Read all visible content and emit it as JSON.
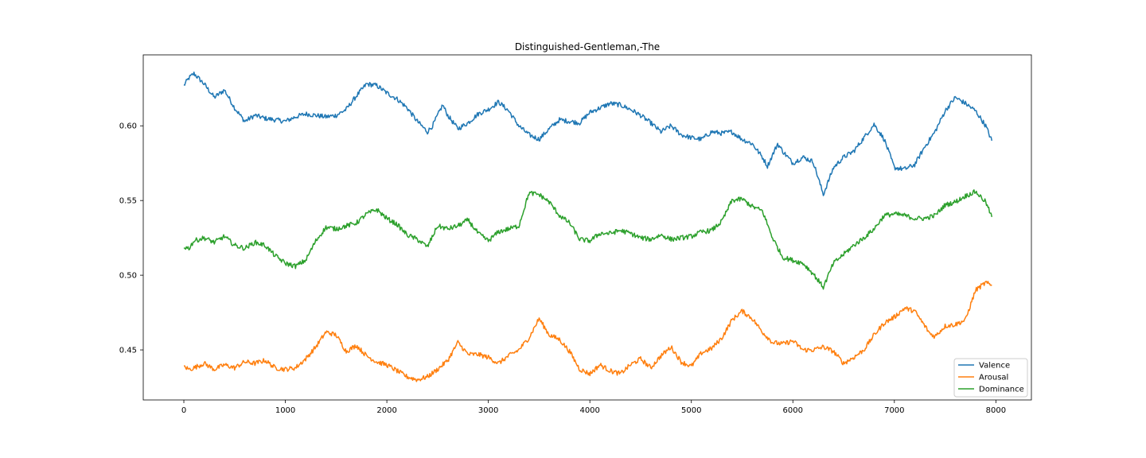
{
  "chart_data": {
    "type": "line",
    "title": "Distinguished-Gentleman,-The",
    "xlabel": "",
    "ylabel": "",
    "xlim": [
      -400,
      8350
    ],
    "ylim": [
      0.4165,
      0.6475
    ],
    "x_ticks": [
      0,
      1000,
      2000,
      3000,
      4000,
      5000,
      6000,
      7000,
      8000
    ],
    "y_ticks": [
      0.45,
      0.5,
      0.55,
      0.6
    ],
    "y_tick_labels": [
      "0.45",
      "0.50",
      "0.55",
      "0.60"
    ],
    "grid": false,
    "legend_position": "lower-right",
    "series": [
      {
        "name": "Valence",
        "color": "#1f77b4",
        "x": [
          0,
          50,
          100,
          200,
          300,
          400,
          450,
          500,
          600,
          700,
          800,
          900,
          1000,
          1100,
          1200,
          1300,
          1400,
          1500,
          1600,
          1700,
          1800,
          1900,
          2000,
          2100,
          2200,
          2300,
          2400,
          2450,
          2550,
          2600,
          2700,
          2800,
          2900,
          3000,
          3100,
          3200,
          3300,
          3400,
          3500,
          3600,
          3700,
          3800,
          3900,
          4000,
          4100,
          4200,
          4300,
          4400,
          4500,
          4600,
          4700,
          4800,
          4900,
          5000,
          5100,
          5200,
          5300,
          5400,
          5500,
          5600,
          5700,
          5750,
          5850,
          5900,
          6000,
          6100,
          6200,
          6300,
          6400,
          6500,
          6600,
          6700,
          6800,
          6900,
          7000,
          7100,
          7200,
          7300,
          7400,
          7500,
          7600,
          7700,
          7800,
          7900,
          7960
        ],
        "y": [
          0.627,
          0.632,
          0.635,
          0.628,
          0.619,
          0.624,
          0.618,
          0.612,
          0.603,
          0.607,
          0.605,
          0.604,
          0.603,
          0.606,
          0.608,
          0.607,
          0.606,
          0.607,
          0.611,
          0.62,
          0.628,
          0.627,
          0.622,
          0.618,
          0.612,
          0.603,
          0.596,
          0.6,
          0.614,
          0.607,
          0.598,
          0.602,
          0.608,
          0.611,
          0.616,
          0.61,
          0.6,
          0.594,
          0.591,
          0.598,
          0.604,
          0.603,
          0.602,
          0.609,
          0.612,
          0.615,
          0.614,
          0.611,
          0.607,
          0.602,
          0.596,
          0.6,
          0.594,
          0.592,
          0.591,
          0.596,
          0.595,
          0.596,
          0.591,
          0.588,
          0.579,
          0.573,
          0.588,
          0.583,
          0.575,
          0.579,
          0.576,
          0.554,
          0.572,
          0.579,
          0.583,
          0.592,
          0.601,
          0.591,
          0.572,
          0.571,
          0.574,
          0.586,
          0.596,
          0.61,
          0.619,
          0.615,
          0.61,
          0.6,
          0.59
        ]
      },
      {
        "name": "Arousal",
        "color": "#ff7f0e",
        "x": [
          0,
          50,
          100,
          200,
          300,
          400,
          500,
          600,
          700,
          800,
          900,
          1000,
          1100,
          1200,
          1300,
          1400,
          1500,
          1600,
          1700,
          1800,
          1900,
          2000,
          2100,
          2200,
          2300,
          2400,
          2500,
          2600,
          2700,
          2800,
          2900,
          3000,
          3100,
          3200,
          3300,
          3400,
          3500,
          3600,
          3700,
          3800,
          3900,
          4000,
          4100,
          4200,
          4300,
          4400,
          4500,
          4600,
          4700,
          4800,
          4900,
          5000,
          5100,
          5200,
          5300,
          5400,
          5500,
          5600,
          5700,
          5800,
          5900,
          6000,
          6100,
          6200,
          6300,
          6400,
          6500,
          6600,
          6700,
          6800,
          6900,
          7000,
          7100,
          7200,
          7300,
          7350,
          7400,
          7500,
          7600,
          7700,
          7800,
          7900,
          7960
        ],
        "y": [
          0.439,
          0.437,
          0.438,
          0.441,
          0.437,
          0.44,
          0.438,
          0.442,
          0.441,
          0.443,
          0.438,
          0.437,
          0.438,
          0.444,
          0.452,
          0.462,
          0.46,
          0.449,
          0.453,
          0.446,
          0.442,
          0.44,
          0.436,
          0.432,
          0.43,
          0.432,
          0.437,
          0.443,
          0.455,
          0.447,
          0.447,
          0.445,
          0.441,
          0.446,
          0.45,
          0.458,
          0.471,
          0.46,
          0.457,
          0.449,
          0.437,
          0.434,
          0.44,
          0.436,
          0.434,
          0.44,
          0.444,
          0.438,
          0.446,
          0.452,
          0.442,
          0.439,
          0.448,
          0.451,
          0.458,
          0.47,
          0.476,
          0.471,
          0.462,
          0.455,
          0.454,
          0.456,
          0.45,
          0.45,
          0.452,
          0.449,
          0.441,
          0.445,
          0.45,
          0.46,
          0.468,
          0.472,
          0.478,
          0.476,
          0.466,
          0.461,
          0.459,
          0.466,
          0.467,
          0.47,
          0.49,
          0.495,
          0.493
        ]
      },
      {
        "name": "Dominance",
        "color": "#2ca02c",
        "x": [
          0,
          50,
          100,
          200,
          300,
          400,
          500,
          600,
          700,
          800,
          900,
          1000,
          1100,
          1200,
          1300,
          1400,
          1500,
          1600,
          1700,
          1800,
          1900,
          2000,
          2100,
          2200,
          2300,
          2400,
          2500,
          2600,
          2700,
          2800,
          2900,
          3000,
          3100,
          3200,
          3300,
          3400,
          3500,
          3600,
          3700,
          3800,
          3900,
          4000,
          4100,
          4200,
          4300,
          4400,
          4500,
          4600,
          4700,
          4800,
          4900,
          5000,
          5100,
          5200,
          5300,
          5400,
          5500,
          5600,
          5700,
          5800,
          5900,
          6000,
          6100,
          6200,
          6300,
          6400,
          6500,
          6600,
          6700,
          6800,
          6900,
          7000,
          7100,
          7200,
          7300,
          7400,
          7500,
          7600,
          7700,
          7800,
          7900,
          7960
        ],
        "y": [
          0.519,
          0.518,
          0.523,
          0.525,
          0.522,
          0.526,
          0.52,
          0.518,
          0.522,
          0.52,
          0.513,
          0.508,
          0.506,
          0.51,
          0.523,
          0.532,
          0.531,
          0.533,
          0.535,
          0.541,
          0.544,
          0.538,
          0.534,
          0.527,
          0.524,
          0.519,
          0.533,
          0.531,
          0.533,
          0.537,
          0.528,
          0.523,
          0.529,
          0.531,
          0.533,
          0.555,
          0.554,
          0.549,
          0.54,
          0.535,
          0.524,
          0.523,
          0.528,
          0.528,
          0.53,
          0.528,
          0.525,
          0.524,
          0.527,
          0.524,
          0.525,
          0.526,
          0.529,
          0.53,
          0.536,
          0.55,
          0.551,
          0.546,
          0.543,
          0.525,
          0.512,
          0.51,
          0.508,
          0.501,
          0.492,
          0.508,
          0.514,
          0.52,
          0.525,
          0.531,
          0.54,
          0.541,
          0.54,
          0.538,
          0.538,
          0.54,
          0.547,
          0.549,
          0.553,
          0.556,
          0.549,
          0.539
        ]
      }
    ]
  }
}
